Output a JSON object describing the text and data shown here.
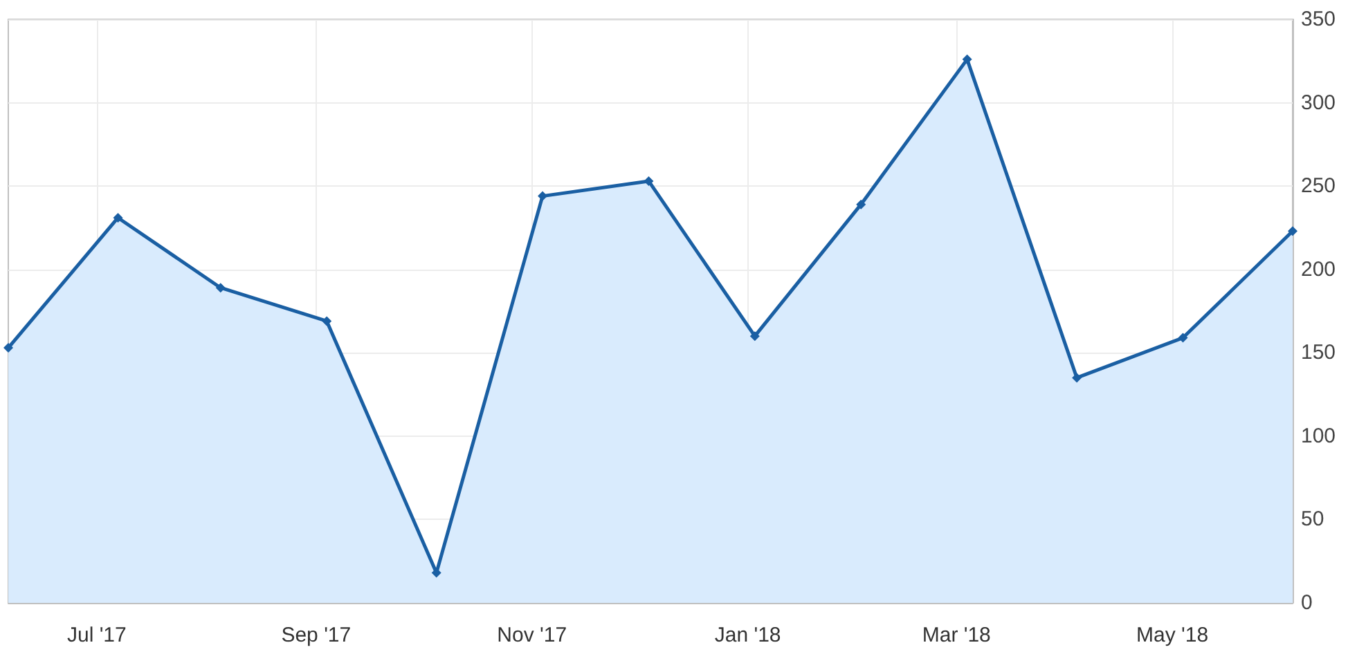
{
  "chart_data": {
    "type": "area",
    "x": [
      "2017-06-06",
      "2017-07-07",
      "2017-08-05",
      "2017-09-04",
      "2017-10-05",
      "2017-11-04",
      "2017-12-04",
      "2018-01-03",
      "2018-02-02",
      "2018-03-04",
      "2018-04-04",
      "2018-05-04",
      "2018-06-04"
    ],
    "series": [
      {
        "color": "#1a5fa3",
        "values": [
          153,
          231,
          189,
          169,
          18,
          244,
          253,
          160,
          239,
          326,
          135,
          159,
          223
        ]
      }
    ],
    "xlim": [
      "2017-06-06",
      "2018-06-04"
    ],
    "xticks": [
      {
        "value": "2017-07-01",
        "label": "Jul '17"
      },
      {
        "value": "2017-09-01",
        "label": "Sep '17"
      },
      {
        "value": "2017-11-01",
        "label": "Nov '17"
      },
      {
        "value": "2018-01-01",
        "label": "Jan '18"
      },
      {
        "value": "2018-03-01",
        "label": "Mar '18"
      },
      {
        "value": "2018-05-01",
        "label": "May '18"
      }
    ],
    "ylim": [
      0,
      350
    ],
    "yticks": [
      0,
      50,
      100,
      150,
      200,
      250,
      300,
      350
    ],
    "grid": true,
    "marker": "diamond",
    "line_style": "solid"
  }
}
